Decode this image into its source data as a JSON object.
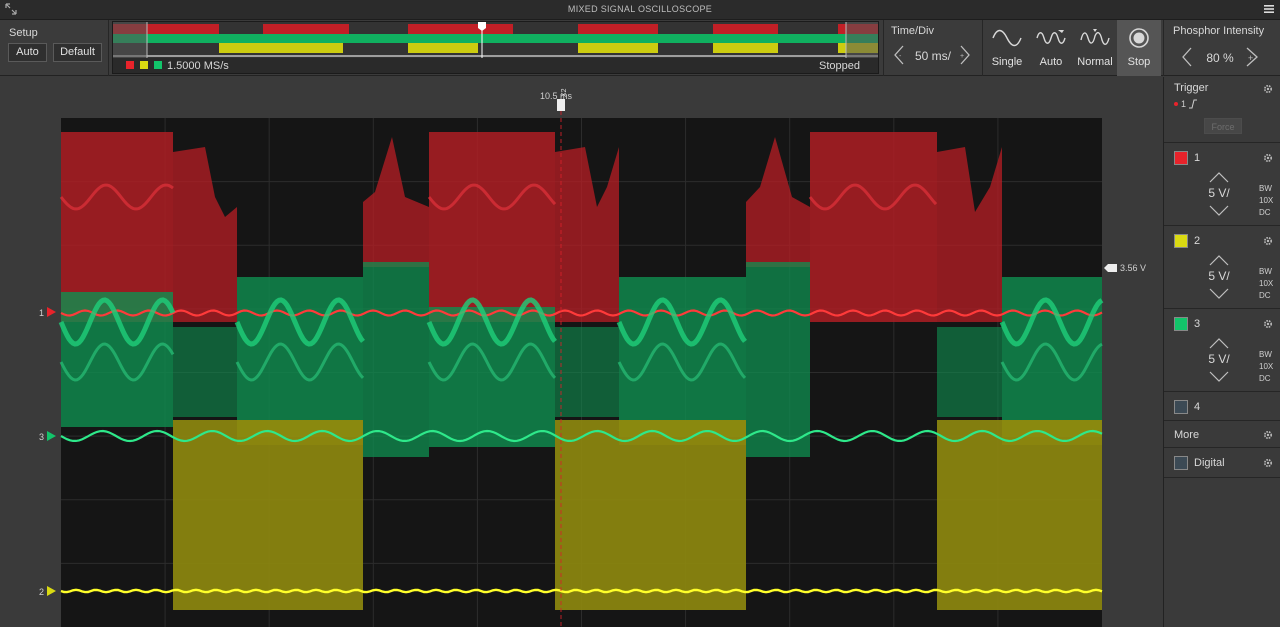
{
  "window": {
    "title": "MIXED SIGNAL OSCILLOSCOPE"
  },
  "setup": {
    "label": "Setup",
    "auto_label": "Auto",
    "default_label": "Default"
  },
  "overview": {
    "sample_rate": "1.5000 MS/s",
    "status": "Stopped",
    "channel_colors": [
      "#e8232b",
      "#dada12",
      "#12c46a"
    ]
  },
  "timebase": {
    "label": "Time/Div",
    "value": "50 ms/"
  },
  "modes": [
    {
      "label": "Single",
      "icon": "single-sine-icon"
    },
    {
      "label": "Auto",
      "icon": "auto-sine-icon"
    },
    {
      "label": "Normal",
      "icon": "normal-sine-icon"
    },
    {
      "label": "Stop",
      "icon": "stop-icon",
      "active": true
    }
  ],
  "phosphor": {
    "label": "Phosphor Intensity",
    "value": "80 %"
  },
  "plot": {
    "cursor_time": "10.5 ms",
    "cursor_id": "X2",
    "trigger_level": "3.56 V",
    "channel_markers": [
      "1",
      "3",
      "2"
    ]
  },
  "trigger": {
    "label": "Trigger",
    "source": "1",
    "force_label": "Force"
  },
  "channels": [
    {
      "num": "1",
      "color": "#e8232b",
      "volts": "5 V/",
      "tags": [
        "BW",
        "10X",
        "DC"
      ]
    },
    {
      "num": "2",
      "color": "#dada12",
      "volts": "5 V/",
      "tags": [
        "BW",
        "10X",
        "DC"
      ]
    },
    {
      "num": "3",
      "color": "#12c46a",
      "volts": "5 V/",
      "tags": [
        "BW",
        "10X",
        "DC"
      ]
    },
    {
      "num": "4",
      "color": "#3c4a55"
    }
  ],
  "more": {
    "label": "More"
  },
  "digital": {
    "label": "Digital",
    "color": "#3c4a55"
  }
}
